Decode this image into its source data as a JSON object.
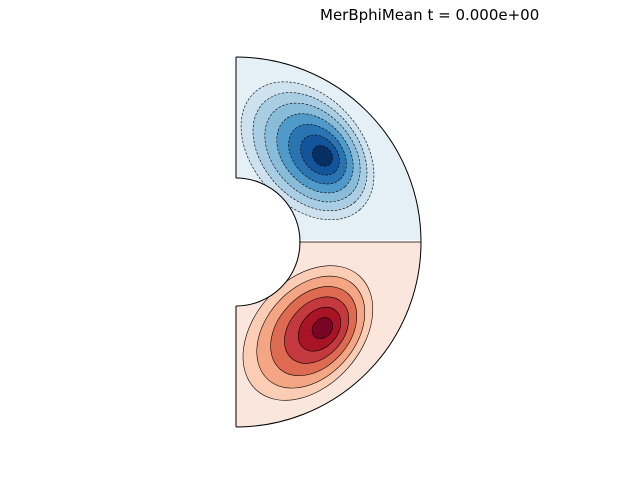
{
  "chart_data": {
    "type": "contour",
    "title": "MerBphiMean t = 0.000e+00",
    "field": "MerBphiMean",
    "time": "0.000e+00",
    "geometry": "meridional half-annulus (spherical shell slice)",
    "radius_ratio": 0.35,
    "colormap": "RdBu_r",
    "northern_hemisphere": {
      "sign": "negative",
      "line_style": "dashed",
      "levels": 7,
      "colors": [
        "#e4eff6",
        "#cde1ee",
        "#a9cde3",
        "#89bcd9",
        "#4f9ac9",
        "#2a74b2",
        "#13549a",
        "#062f62"
      ]
    },
    "southern_hemisphere": {
      "sign": "positive",
      "line_style": "solid",
      "levels": 7,
      "colors": [
        "#fbe6dd",
        "#fbcdb4",
        "#f4a583",
        "#de6a52",
        "#c4393d",
        "#a81426",
        "#7a0423"
      ]
    },
    "colorbar": false,
    "axes_visible": false
  }
}
